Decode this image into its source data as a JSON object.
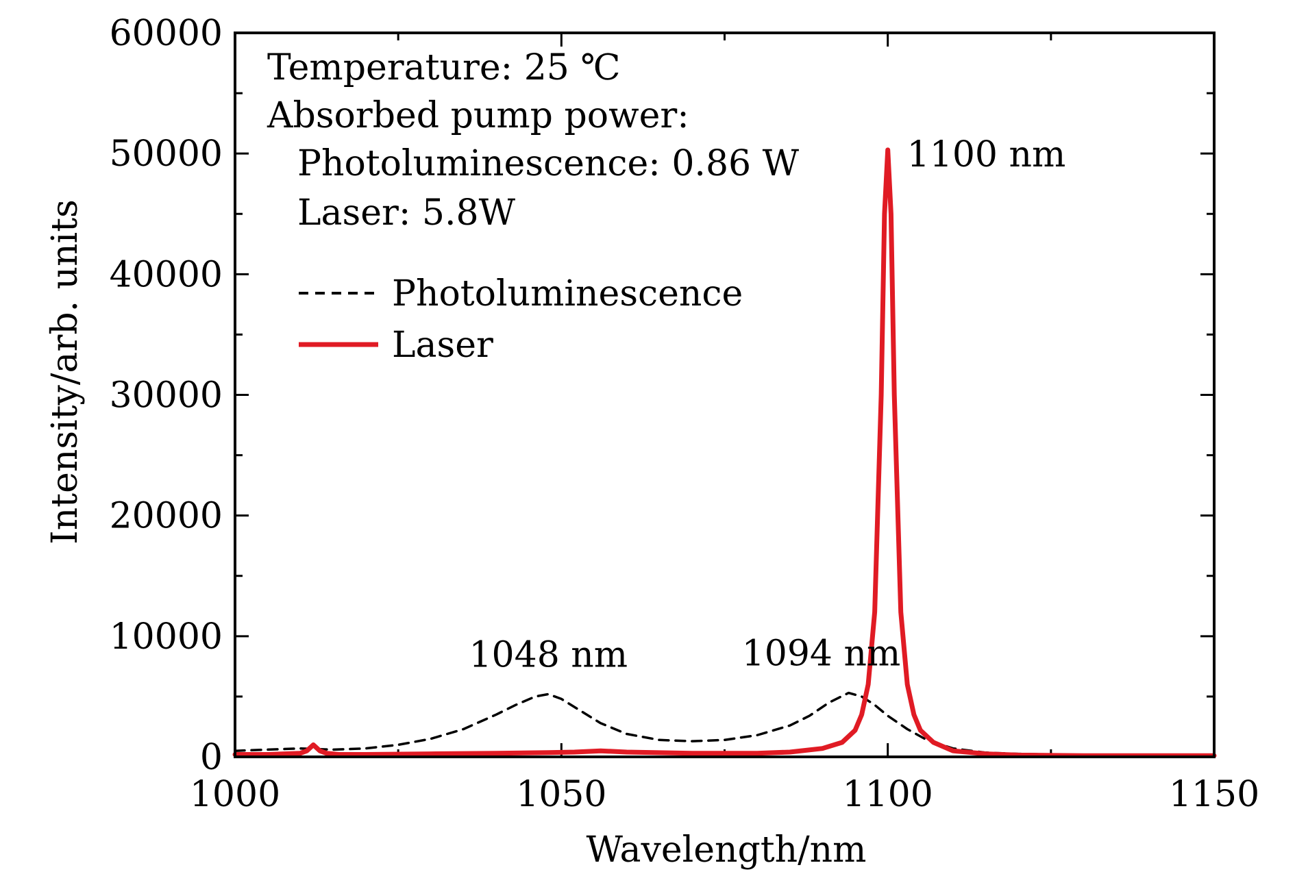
{
  "colors": {
    "photoluminescence": "#000000",
    "laser": "#e01b24",
    "axis": "#000000",
    "background": "#ffffff"
  },
  "chart_data": {
    "type": "line",
    "xlabel": "Wavelength/nm",
    "ylabel": "Intensity/arb. units",
    "xlim": [
      1000,
      1150
    ],
    "ylim": [
      0,
      60000
    ],
    "x_ticks": [
      1000,
      1050,
      1100,
      1150
    ],
    "x_tick_labels": [
      "1000",
      "1050",
      "1100",
      "1150"
    ],
    "y_ticks": [
      0,
      10000,
      20000,
      30000,
      40000,
      50000,
      60000
    ],
    "y_tick_labels": [
      "0",
      "10000",
      "20000",
      "30000",
      "40000",
      "50000",
      "60000"
    ],
    "grid": false,
    "legend_position": "upper-left",
    "annotation_lines": [
      "Temperature: 25 ℃",
      "Absorbed pump power:",
      "Photoluminescence: 0.86 W",
      "Laser: 5.8W"
    ],
    "peak_labels": [
      {
        "text": "1048 nm",
        "x": 1048,
        "y": 5200
      },
      {
        "text": "1094 nm",
        "x": 1094,
        "y": 5300
      },
      {
        "text": "1100 nm",
        "x": 1100,
        "y": 50300
      }
    ],
    "series": [
      {
        "name": "Photoluminescence",
        "style": "dashed",
        "x": [
          1000,
          1005,
          1010,
          1015,
          1020,
          1025,
          1030,
          1035,
          1040,
          1043,
          1046,
          1048,
          1050,
          1053,
          1056,
          1060,
          1065,
          1070,
          1075,
          1080,
          1085,
          1088,
          1091,
          1094,
          1096,
          1098,
          1100,
          1103,
          1106,
          1110,
          1115,
          1120,
          1130,
          1140,
          1150
        ],
        "values": [
          500,
          600,
          700,
          600,
          700,
          1000,
          1500,
          2300,
          3500,
          4300,
          5000,
          5200,
          4800,
          3800,
          2800,
          1900,
          1400,
          1300,
          1400,
          1800,
          2600,
          3400,
          4500,
          5300,
          5000,
          4300,
          3400,
          2300,
          1400,
          700,
          350,
          250,
          150,
          100,
          100
        ]
      },
      {
        "name": "Laser",
        "style": "solid",
        "x": [
          1000,
          1005,
          1010,
          1011,
          1012,
          1013,
          1014,
          1016,
          1020,
          1030,
          1040,
          1048,
          1052,
          1056,
          1060,
          1070,
          1080,
          1085,
          1090,
          1093,
          1095,
          1096,
          1097,
          1098,
          1099,
          1099.5,
          1100,
          1100.5,
          1101,
          1102,
          1103,
          1104,
          1105,
          1107,
          1110,
          1115,
          1120,
          1130,
          1140,
          1150
        ],
        "values": [
          200,
          200,
          300,
          500,
          1000,
          500,
          300,
          200,
          200,
          250,
          300,
          350,
          400,
          500,
          400,
          300,
          300,
          400,
          700,
          1200,
          2200,
          3500,
          6000,
          12000,
          30000,
          45000,
          50300,
          45000,
          30000,
          12000,
          6000,
          3500,
          2200,
          1200,
          500,
          250,
          150,
          100,
          100,
          100
        ]
      }
    ]
  }
}
